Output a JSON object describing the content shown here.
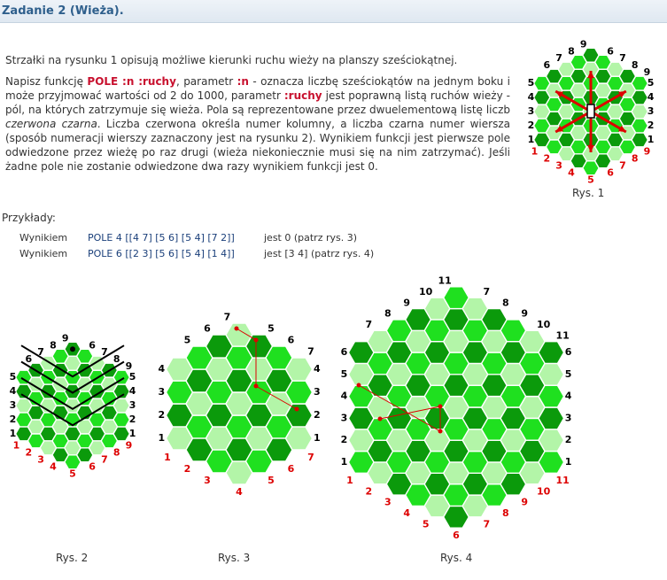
{
  "title": "Zadanie 2 (Wieża).",
  "paragraph1": "Strzałki na rysunku 1 opisują możliwe kierunki ruchu wieży na planszy sześciokątnej.",
  "paragraph2": {
    "t1": "Napisz funkcję ",
    "kw1": "POLE :n :ruchy",
    "t2": ", parametr ",
    "kw2": ":n",
    "t3": " - oznacza liczbę sześciokątów na jednym boku i może przyjmować wartości od 2 do 1000, parametr ",
    "kw3": ":ruchy",
    "t4": " jest poprawną listą ruchów wieży - pól, na których zatrzymuje się wieża. Pola są reprezentowane przez dwuelementową listę liczb ",
    "em1": "czerwona czarna",
    "t5": ". Liczba czerwona określa numer kolumny, a liczba czarna numer wiersza (sposób numeracji wierszy zaznaczony jest na rysunku 2). Wynikiem funkcji jest pierwsze pole odwiedzone przez wieżę po raz drugi (wieża niekoniecznie musi się na nim zatrzymać). Jeśli żadne pole nie zostanie odwiedzone dwa razy wynikiem funkcji jest 0."
  },
  "examples_heading": "Przykłady:",
  "examples": [
    {
      "label": "Wynikiem",
      "code": "POLE 4 [[4 7] [5 6] [5 4] [7 2]]",
      "result": "jest 0 (patrz rys. 3)"
    },
    {
      "label": "Wynikiem",
      "code": "POLE 6 [[2 3] [5 6] [5 4] [1 4]]",
      "result": "jest [3 4] (patrz rys. 4)"
    }
  ],
  "captions": {
    "rys1": "Rys. 1",
    "rys2": "Rys. 2",
    "rys3": "Rys. 3",
    "rys4": "Rys. 4"
  },
  "colors": {
    "light": "#b3f5a8",
    "mid": "#1fe01f",
    "dark": "#0b9a0b",
    "red": "#dd0000"
  }
}
